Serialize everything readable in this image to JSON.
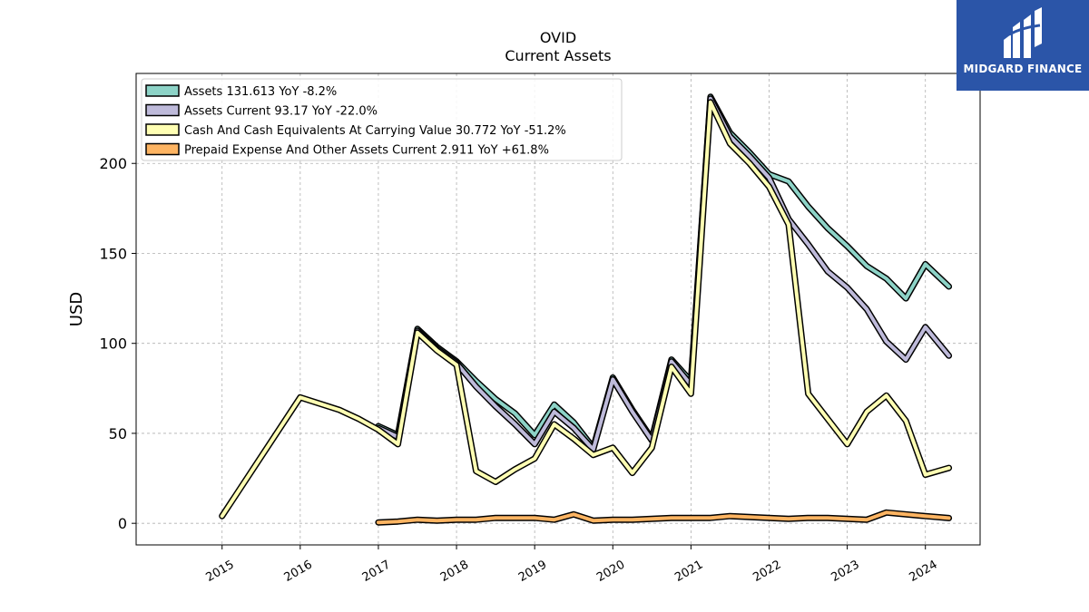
{
  "chart_data": {
    "type": "line",
    "title": "OVID",
    "subtitle": "Current  Assets",
    "ylabel": "USD",
    "xlabel": "",
    "ylim": [
      -12,
      250
    ],
    "xlim": [
      2013.9,
      2024.7
    ],
    "yticks": [
      0,
      50,
      100,
      150,
      200
    ],
    "xticks": [
      2015,
      2016,
      2017,
      2018,
      2019,
      2020,
      2021,
      2022,
      2023,
      2024
    ],
    "grid": true,
    "legend_position": "top-left",
    "series": [
      {
        "name": "Assets  131.613 YoY -8.2%",
        "color": "#8dd3c7",
        "x": [
          2017.0,
          2017.25,
          2017.5,
          2017.75,
          2018.0,
          2018.25,
          2018.5,
          2018.75,
          2019.0,
          2019.25,
          2019.5,
          2019.75,
          2020.0,
          2020.25,
          2020.5,
          2020.75,
          2021.0,
          2021.25,
          2021.5,
          2021.75,
          2022.0,
          2022.25,
          2022.5,
          2022.75,
          2023.0,
          2023.25,
          2023.5,
          2023.75,
          2024.0,
          2024.3
        ],
        "y": [
          54,
          49,
          108,
          98,
          90,
          79,
          69,
          61,
          49,
          66,
          56,
          42,
          81,
          63,
          47,
          91,
          79,
          237,
          217,
          206,
          194,
          190,
          176,
          164,
          154,
          143,
          136,
          125,
          144,
          131.613
        ]
      },
      {
        "name": "Assets Current  93.17 YoY -22.0%",
        "color": "#bebada",
        "x": [
          2017.0,
          2017.25,
          2017.5,
          2017.75,
          2018.0,
          2018.25,
          2018.5,
          2018.75,
          2019.0,
          2019.25,
          2019.5,
          2019.75,
          2020.0,
          2020.25,
          2020.5,
          2020.75,
          2021.0,
          2021.25,
          2021.5,
          2021.75,
          2022.0,
          2022.25,
          2022.5,
          2022.75,
          2023.0,
          2023.25,
          2023.5,
          2023.75,
          2024.0,
          2024.3
        ],
        "y": [
          53,
          48,
          107,
          97,
          89,
          76,
          65,
          55,
          44,
          62,
          53,
          41,
          80,
          62,
          46,
          90,
          77,
          236,
          215,
          204,
          192,
          169,
          155,
          140,
          131,
          119,
          101,
          91,
          109,
          93.17
        ]
      },
      {
        "name": "Cash And Cash Equivalents At Carrying Value  30.772 YoY -51.2%",
        "color": "#ffffb3",
        "x": [
          2015.0,
          2016.0,
          2016.5,
          2016.75,
          2017.0,
          2017.25,
          2017.5,
          2017.75,
          2018.0,
          2018.25,
          2018.5,
          2018.75,
          2019.0,
          2019.25,
          2019.5,
          2019.75,
          2020.0,
          2020.25,
          2020.5,
          2020.75,
          2021.0,
          2021.25,
          2021.5,
          2021.75,
          2022.0,
          2022.25,
          2022.5,
          2022.75,
          2023.0,
          2023.25,
          2023.5,
          2023.75,
          2024.0,
          2024.3
        ],
        "y": [
          4,
          70,
          63,
          58,
          52,
          44,
          106,
          96,
          88,
          29,
          23,
          30,
          36,
          55,
          47,
          38,
          42,
          28,
          42,
          87,
          72,
          234,
          211,
          200,
          187,
          166,
          72,
          58,
          44,
          62,
          71,
          57,
          27,
          30.772
        ]
      },
      {
        "name": "Prepaid Expense And Other Assets Current  2.911 YoY +61.8%",
        "color": "#fdb462",
        "x": [
          2017.0,
          2017.25,
          2017.5,
          2017.75,
          2018.0,
          2018.25,
          2018.5,
          2018.75,
          2019.0,
          2019.25,
          2019.5,
          2019.75,
          2020.0,
          2020.25,
          2020.5,
          2020.75,
          2021.0,
          2021.25,
          2021.5,
          2021.75,
          2022.0,
          2022.25,
          2022.5,
          2022.75,
          2023.0,
          2023.25,
          2023.5,
          2023.75,
          2024.0,
          2024.3
        ],
        "y": [
          0.5,
          1,
          2,
          1.5,
          2,
          2,
          3,
          3,
          3,
          2,
          5,
          1.5,
          2,
          2,
          2.5,
          3,
          3,
          3,
          4,
          3.5,
          3,
          2.5,
          3,
          3,
          2.5,
          2,
          6,
          5,
          4,
          2.911
        ]
      }
    ]
  },
  "logo": {
    "name": "MIDGARD FINANCE"
  }
}
